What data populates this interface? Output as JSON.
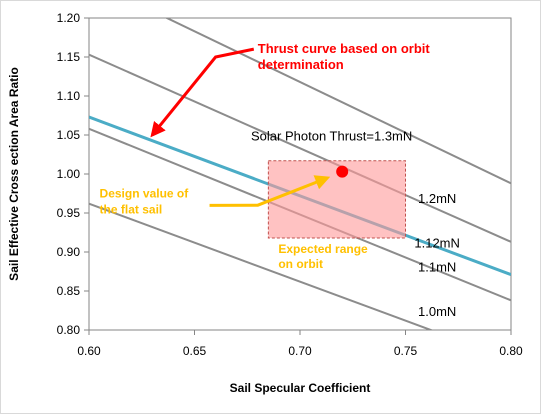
{
  "chart_data": {
    "type": "line",
    "xlabel": "Sail Specular  Coefficient",
    "ylabel": "Sail Effective  Cross ection Area Ratio",
    "xlim": [
      0.6,
      0.8
    ],
    "ylim": [
      0.8,
      1.2
    ],
    "xticks": [
      "0.60",
      "0.65",
      "0.70",
      "0.75",
      "0.80"
    ],
    "yticks": [
      "0.80",
      "0.85",
      "0.90",
      "0.95",
      "1.00",
      "1.05",
      "1.10",
      "1.15",
      "1.20"
    ],
    "grid": "off",
    "legend": "none",
    "series": [
      {
        "name": "1.0mN",
        "color": "#8c8c8c",
        "label_at": [
          0.765,
          0.818
        ],
        "x": [
          0.6,
          0.8
        ],
        "y": [
          0.962,
          0.762
        ]
      },
      {
        "name": "1.1mN",
        "color": "#8c8c8c",
        "label_at": [
          0.765,
          0.875
        ],
        "x": [
          0.6,
          0.8
        ],
        "y": [
          1.058,
          0.838
        ]
      },
      {
        "name": "1.12mN",
        "color": "#4bacc6",
        "label_at": [
          0.765,
          0.906
        ],
        "x": [
          0.6,
          0.8
        ],
        "y": [
          1.073,
          0.871
        ]
      },
      {
        "name": "1.2mN",
        "color": "#8c8c8c",
        "label_at": [
          0.765,
          0.963
        ],
        "x": [
          0.6,
          0.8
        ],
        "y": [
          1.153,
          0.913
        ]
      },
      {
        "name": "Solar Photon Thrust=1.3mN",
        "color": "#8c8c8c",
        "label_at": [
          0.715,
          1.043
        ],
        "x": [
          0.6,
          0.8
        ],
        "y": [
          1.248,
          0.988
        ]
      }
    ],
    "expected_range": {
      "x": [
        0.685,
        0.75
      ],
      "y": [
        0.918,
        1.017
      ],
      "fill": "#ff9999",
      "border": "#c0504d",
      "label": "Expected range\non orbit"
    },
    "design_point": {
      "x": 0.72,
      "y": 1.003,
      "color": "#ff0000"
    },
    "annotations": [
      {
        "id": "thrust-curve",
        "text": "Thrust curve based on orbit\ndetermination",
        "color": "#ff0000",
        "at": [
          0.68,
          1.155
        ],
        "tip": [
          0.63,
          1.05
        ],
        "elbow": [
          0.66,
          1.15
        ]
      },
      {
        "id": "design-value",
        "text": "Design value of\nthe flat sail",
        "color": "#ffc000",
        "at": [
          0.605,
          0.97
        ],
        "tip": [
          0.713,
          0.995
        ],
        "elbow": [
          0.68,
          0.96
        ]
      }
    ]
  }
}
